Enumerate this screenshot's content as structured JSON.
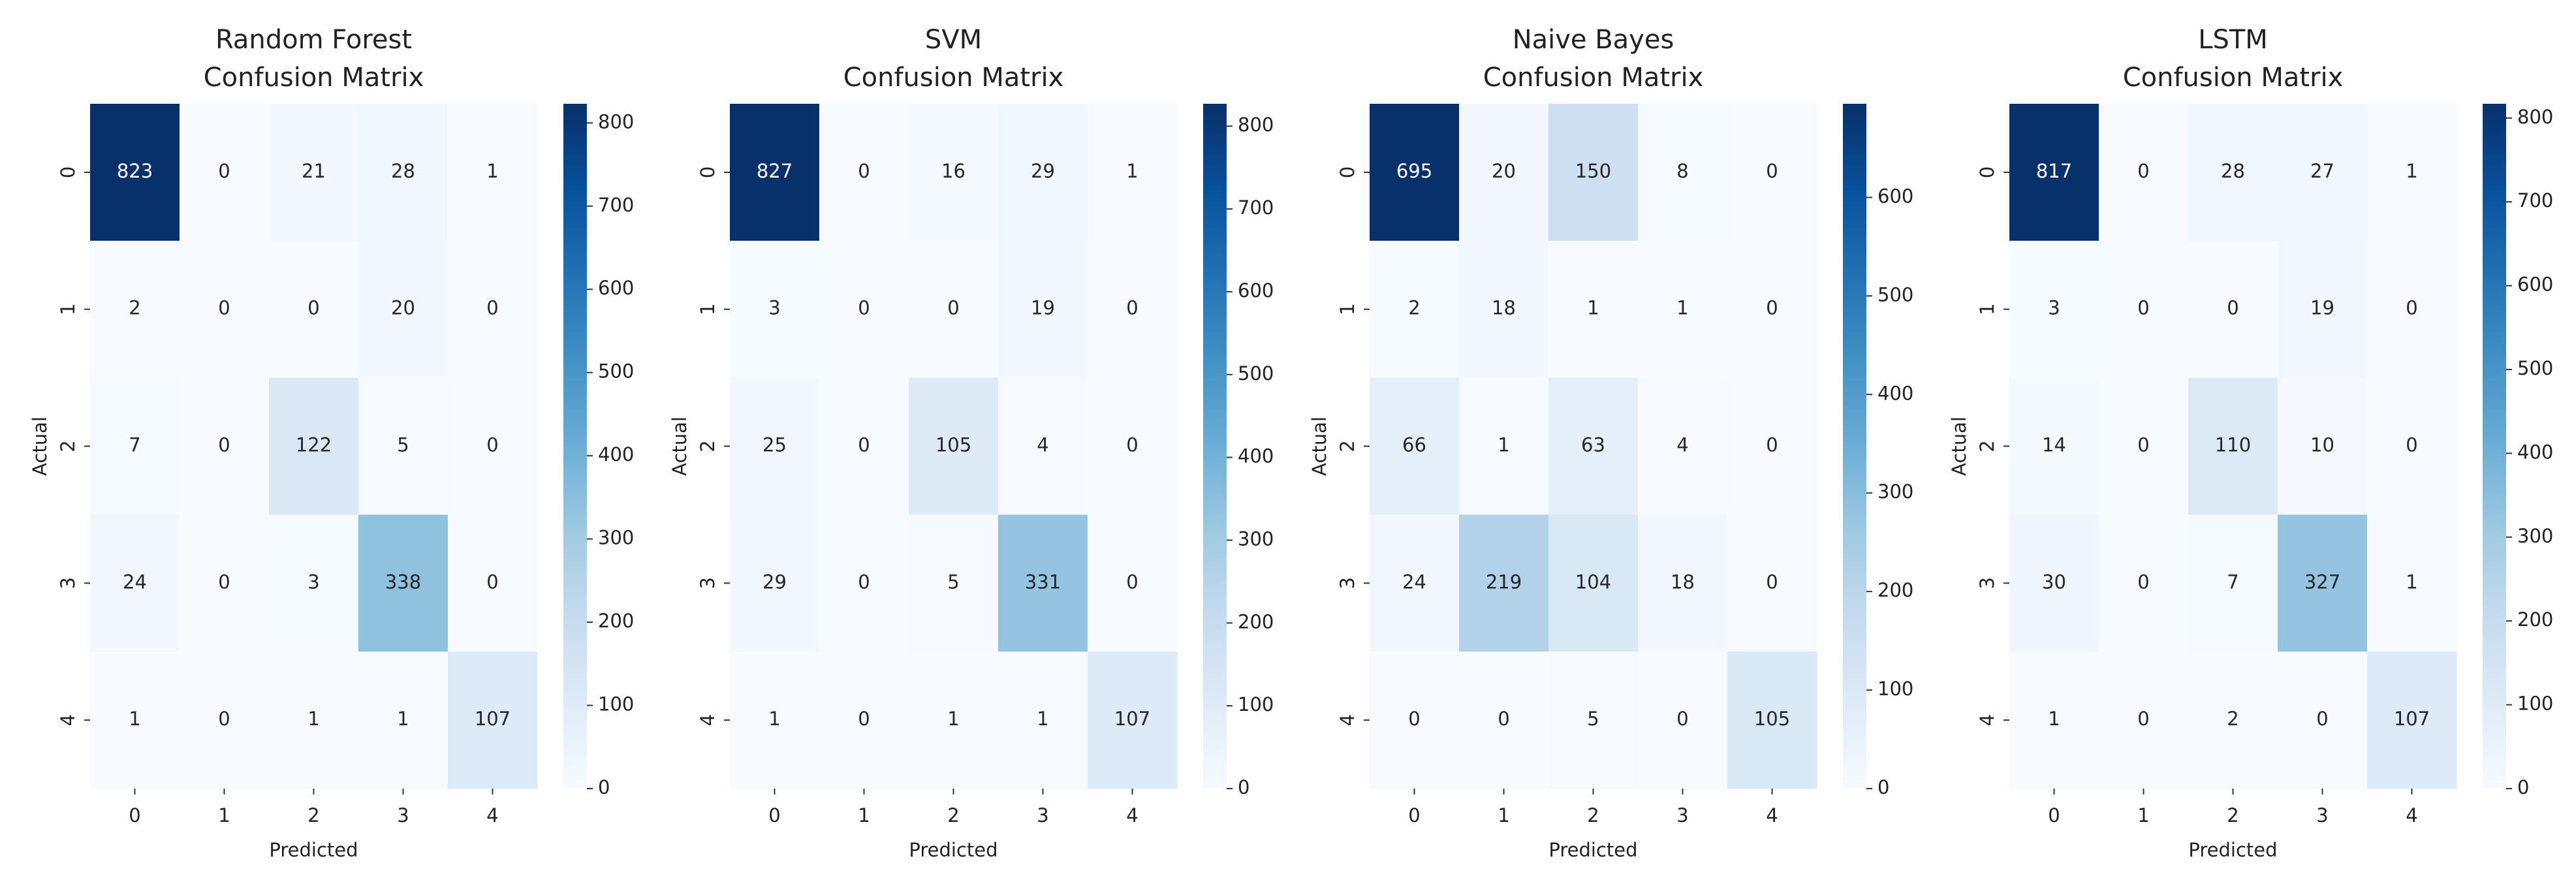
{
  "chart_data": [
    {
      "type": "heatmap",
      "title": "Random Forest",
      "subtitle": "Confusion Matrix",
      "xlabel": "Predicted",
      "ylabel": "Actual",
      "x_categories": [
        "0",
        "1",
        "2",
        "3",
        "4"
      ],
      "y_categories": [
        "0",
        "1",
        "2",
        "3",
        "4"
      ],
      "values": [
        [
          823,
          0,
          21,
          28,
          1
        ],
        [
          2,
          0,
          0,
          20,
          0
        ],
        [
          7,
          0,
          122,
          5,
          0
        ],
        [
          24,
          0,
          3,
          338,
          0
        ],
        [
          1,
          0,
          1,
          1,
          107
        ]
      ],
      "colormap": "Blues",
      "clim": [
        0,
        823
      ],
      "cticks": [
        0,
        100,
        200,
        300,
        400,
        500,
        600,
        700,
        800
      ]
    },
    {
      "type": "heatmap",
      "title": "SVM",
      "subtitle": "Confusion Matrix",
      "xlabel": "Predicted",
      "ylabel": "Actual",
      "x_categories": [
        "0",
        "1",
        "2",
        "3",
        "4"
      ],
      "y_categories": [
        "0",
        "1",
        "2",
        "3",
        "4"
      ],
      "values": [
        [
          827,
          0,
          16,
          29,
          1
        ],
        [
          3,
          0,
          0,
          19,
          0
        ],
        [
          25,
          0,
          105,
          4,
          0
        ],
        [
          29,
          0,
          5,
          331,
          0
        ],
        [
          1,
          0,
          1,
          1,
          107
        ]
      ],
      "colormap": "Blues",
      "clim": [
        0,
        827
      ],
      "cticks": [
        0,
        100,
        200,
        300,
        400,
        500,
        600,
        700,
        800
      ]
    },
    {
      "type": "heatmap",
      "title": "Naive Bayes",
      "subtitle": "Confusion Matrix",
      "xlabel": "Predicted",
      "ylabel": "Actual",
      "x_categories": [
        "0",
        "1",
        "2",
        "3",
        "4"
      ],
      "y_categories": [
        "0",
        "1",
        "2",
        "3",
        "4"
      ],
      "values": [
        [
          695,
          20,
          150,
          8,
          0
        ],
        [
          2,
          18,
          1,
          1,
          0
        ],
        [
          66,
          1,
          63,
          4,
          0
        ],
        [
          24,
          219,
          104,
          18,
          0
        ],
        [
          0,
          0,
          5,
          0,
          105
        ]
      ],
      "colormap": "Blues",
      "clim": [
        0,
        695
      ],
      "cticks": [
        0,
        100,
        200,
        300,
        400,
        500,
        600
      ]
    },
    {
      "type": "heatmap",
      "title": "LSTM",
      "subtitle": "Confusion Matrix",
      "xlabel": "Predicted",
      "ylabel": "Actual",
      "x_categories": [
        "0",
        "1",
        "2",
        "3",
        "4"
      ],
      "y_categories": [
        "0",
        "1",
        "2",
        "3",
        "4"
      ],
      "values": [
        [
          817,
          0,
          28,
          27,
          1
        ],
        [
          3,
          0,
          0,
          19,
          0
        ],
        [
          14,
          0,
          110,
          10,
          0
        ],
        [
          30,
          0,
          7,
          327,
          1
        ],
        [
          1,
          0,
          2,
          0,
          107
        ]
      ],
      "colormap": "Blues",
      "clim": [
        0,
        817
      ],
      "cticks": [
        0,
        100,
        200,
        300,
        400,
        500,
        600,
        700,
        800
      ]
    }
  ]
}
